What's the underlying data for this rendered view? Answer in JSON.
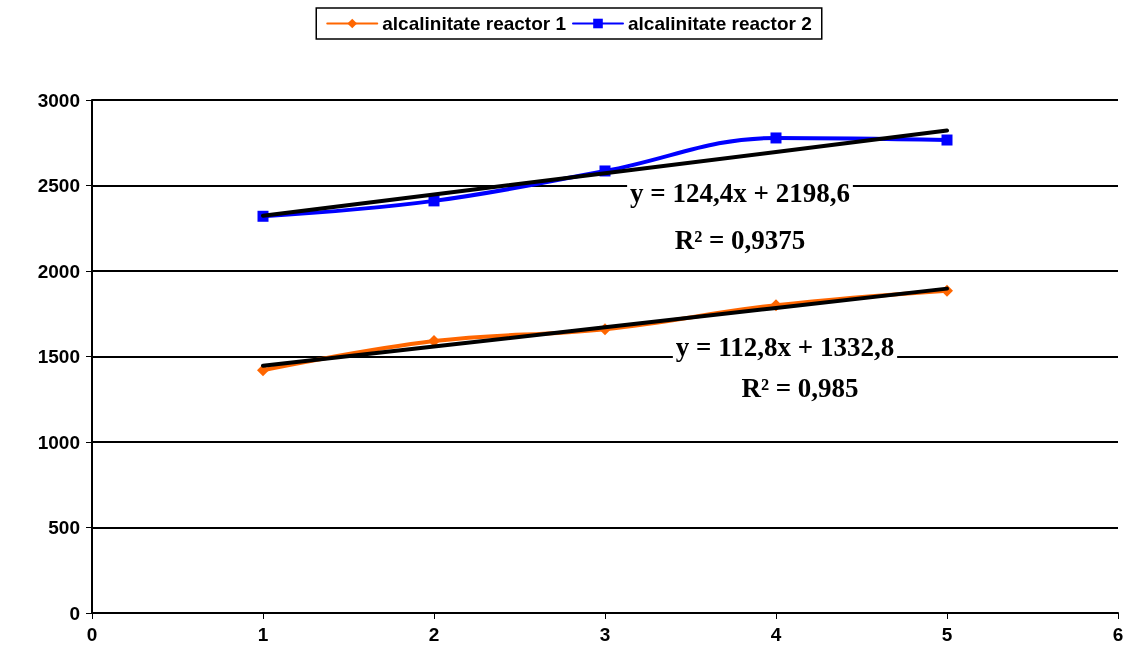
{
  "chart_data": {
    "type": "line",
    "x": [
      1,
      2,
      3,
      4,
      5
    ],
    "series": [
      {
        "name": "alcalinitate reactor 1",
        "color": "#ff6600",
        "marker": "diamond",
        "values": [
          1420,
          1590,
          1660,
          1800,
          1885
        ]
      },
      {
        "name": "alcalinitate reactor 2",
        "color": "#0000ff",
        "marker": "square",
        "values": [
          2320,
          2410,
          2585,
          2778,
          2766
        ]
      },
      {
        "type": "line",
        "color": "#000000",
        "marker": "none",
        "values": [
          1446,
          1558,
          1671,
          1784,
          1897
        ]
      },
      {
        "type": "line",
        "color": "#000000",
        "marker": "none",
        "values": [
          2323,
          2447,
          2572,
          2696,
          2821
        ]
      }
    ],
    "annotations": [
      "y = 124,4x + 2198,6",
      "R² = 0,9375",
      "y = 112,8x + 1332,8",
      "R² = 0,985"
    ],
    "xlim": [
      0,
      6
    ],
    "xticks": [
      0,
      1,
      2,
      3,
      4,
      5,
      6
    ],
    "ylim": [
      0,
      3000
    ],
    "yticks": [
      0,
      500,
      1000,
      1500,
      2000,
      2500,
      3000
    ],
    "grid": "y",
    "legend": "top"
  }
}
